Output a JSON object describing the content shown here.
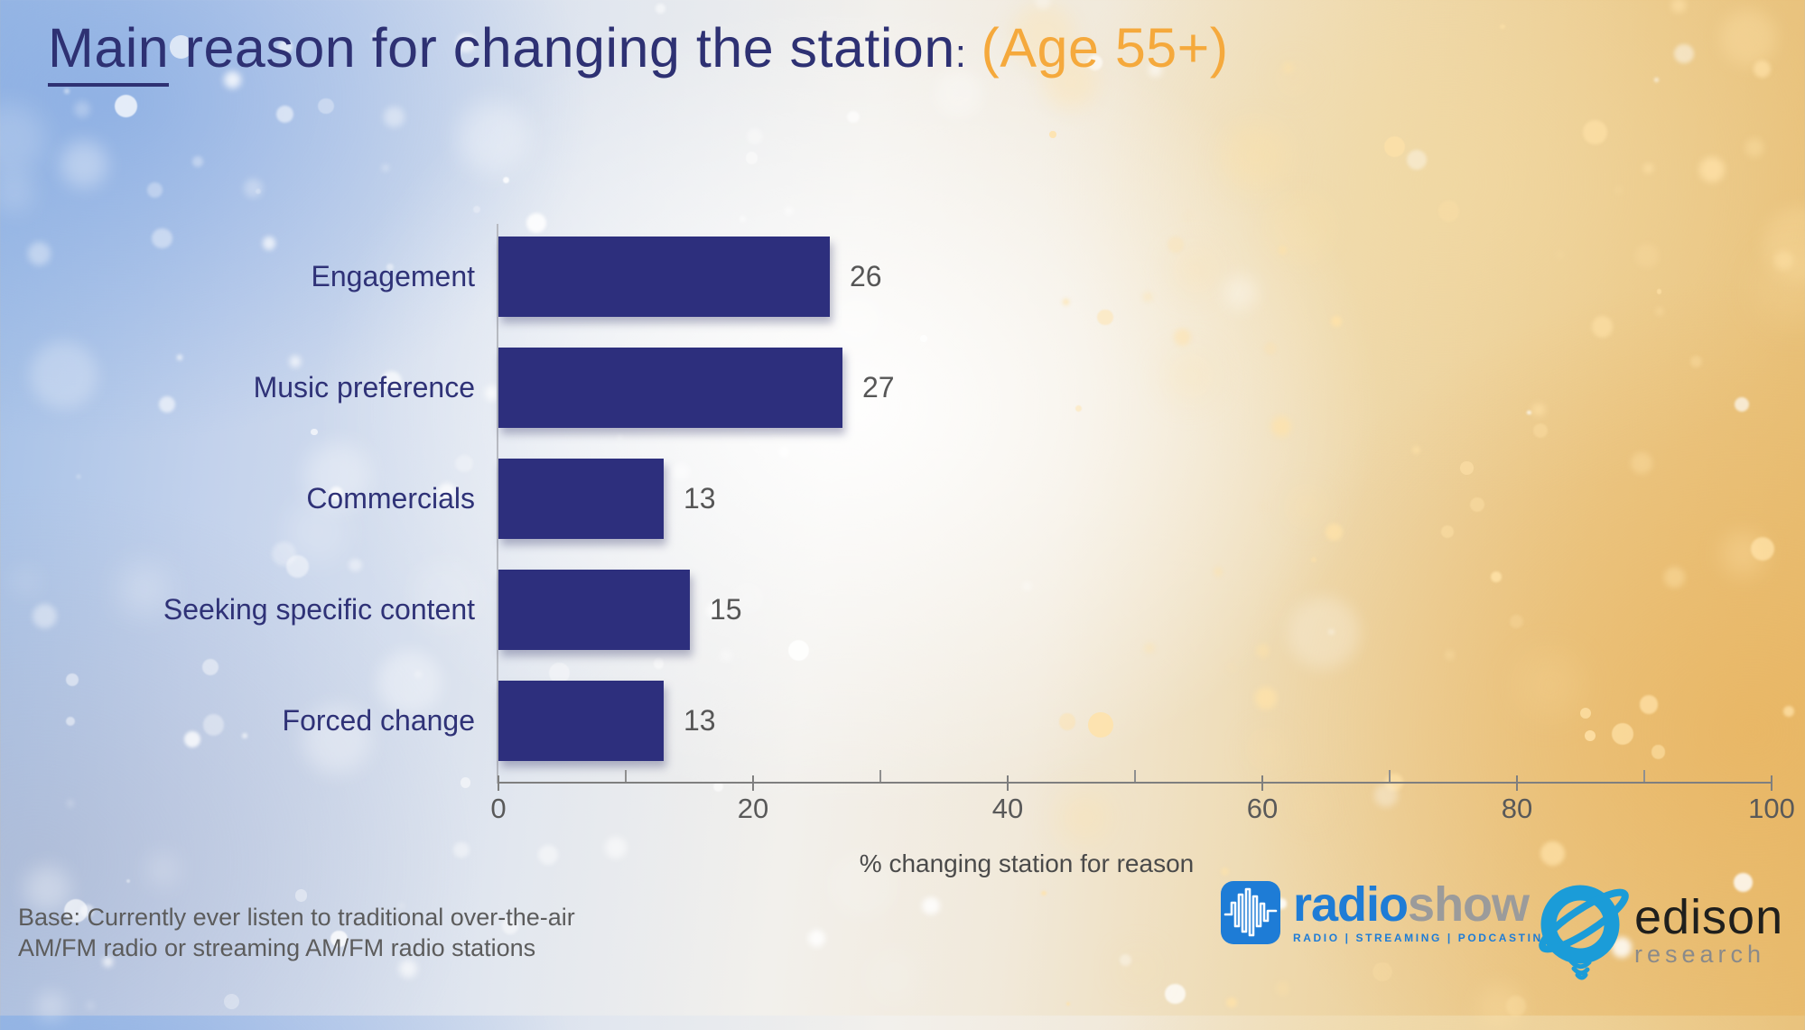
{
  "title": {
    "emphasis": "Main",
    "rest": " reason for changing the station",
    "colon": ":",
    "suffix": "(Age 55+)",
    "text_color": "#2e3173",
    "accent_color": "#f5a93c"
  },
  "chart_data": {
    "type": "bar",
    "orientation": "horizontal",
    "title": "Main reason for changing the station: (Age 55+)",
    "categories": [
      "Engagement",
      "Music preference",
      "Commercials",
      "Seeking specific content",
      "Forced change"
    ],
    "values": [
      26,
      27,
      13,
      15,
      13
    ],
    "xlabel": "% changing station for reason",
    "ylabel": "",
    "xlim": [
      0,
      100
    ],
    "x_major_ticks": [
      0,
      20,
      40,
      60,
      80,
      100
    ],
    "x_minor_ticks": [
      10,
      30,
      50,
      70,
      90
    ],
    "grid": false,
    "legend": null,
    "bar_color": "#2d2f7d",
    "category_label_color": "#2f3277",
    "value_label_color": "#565656",
    "axis_color": "#7f7f7f"
  },
  "footer": {
    "base_note_line1": "Base: Currently ever listen to traditional over-the-air",
    "base_note_line2": "AM/FM radio or streaming AM/FM radio stations"
  },
  "logos": {
    "radioshow": {
      "word_part1": "radio",
      "word_part2": "show",
      "tagline": "RADIO | STREAMING | PODCASTING",
      "blue": "#1e7cd6",
      "gray": "#9b9b9b",
      "icon": "waveform-icon"
    },
    "edison": {
      "name": "edison",
      "sub": "research",
      "blue": "#1b9cd8",
      "name_color": "#1f1f1d",
      "sub_color": "#8a8a8a",
      "icon": "orbit-lightbulb-icon"
    }
  }
}
